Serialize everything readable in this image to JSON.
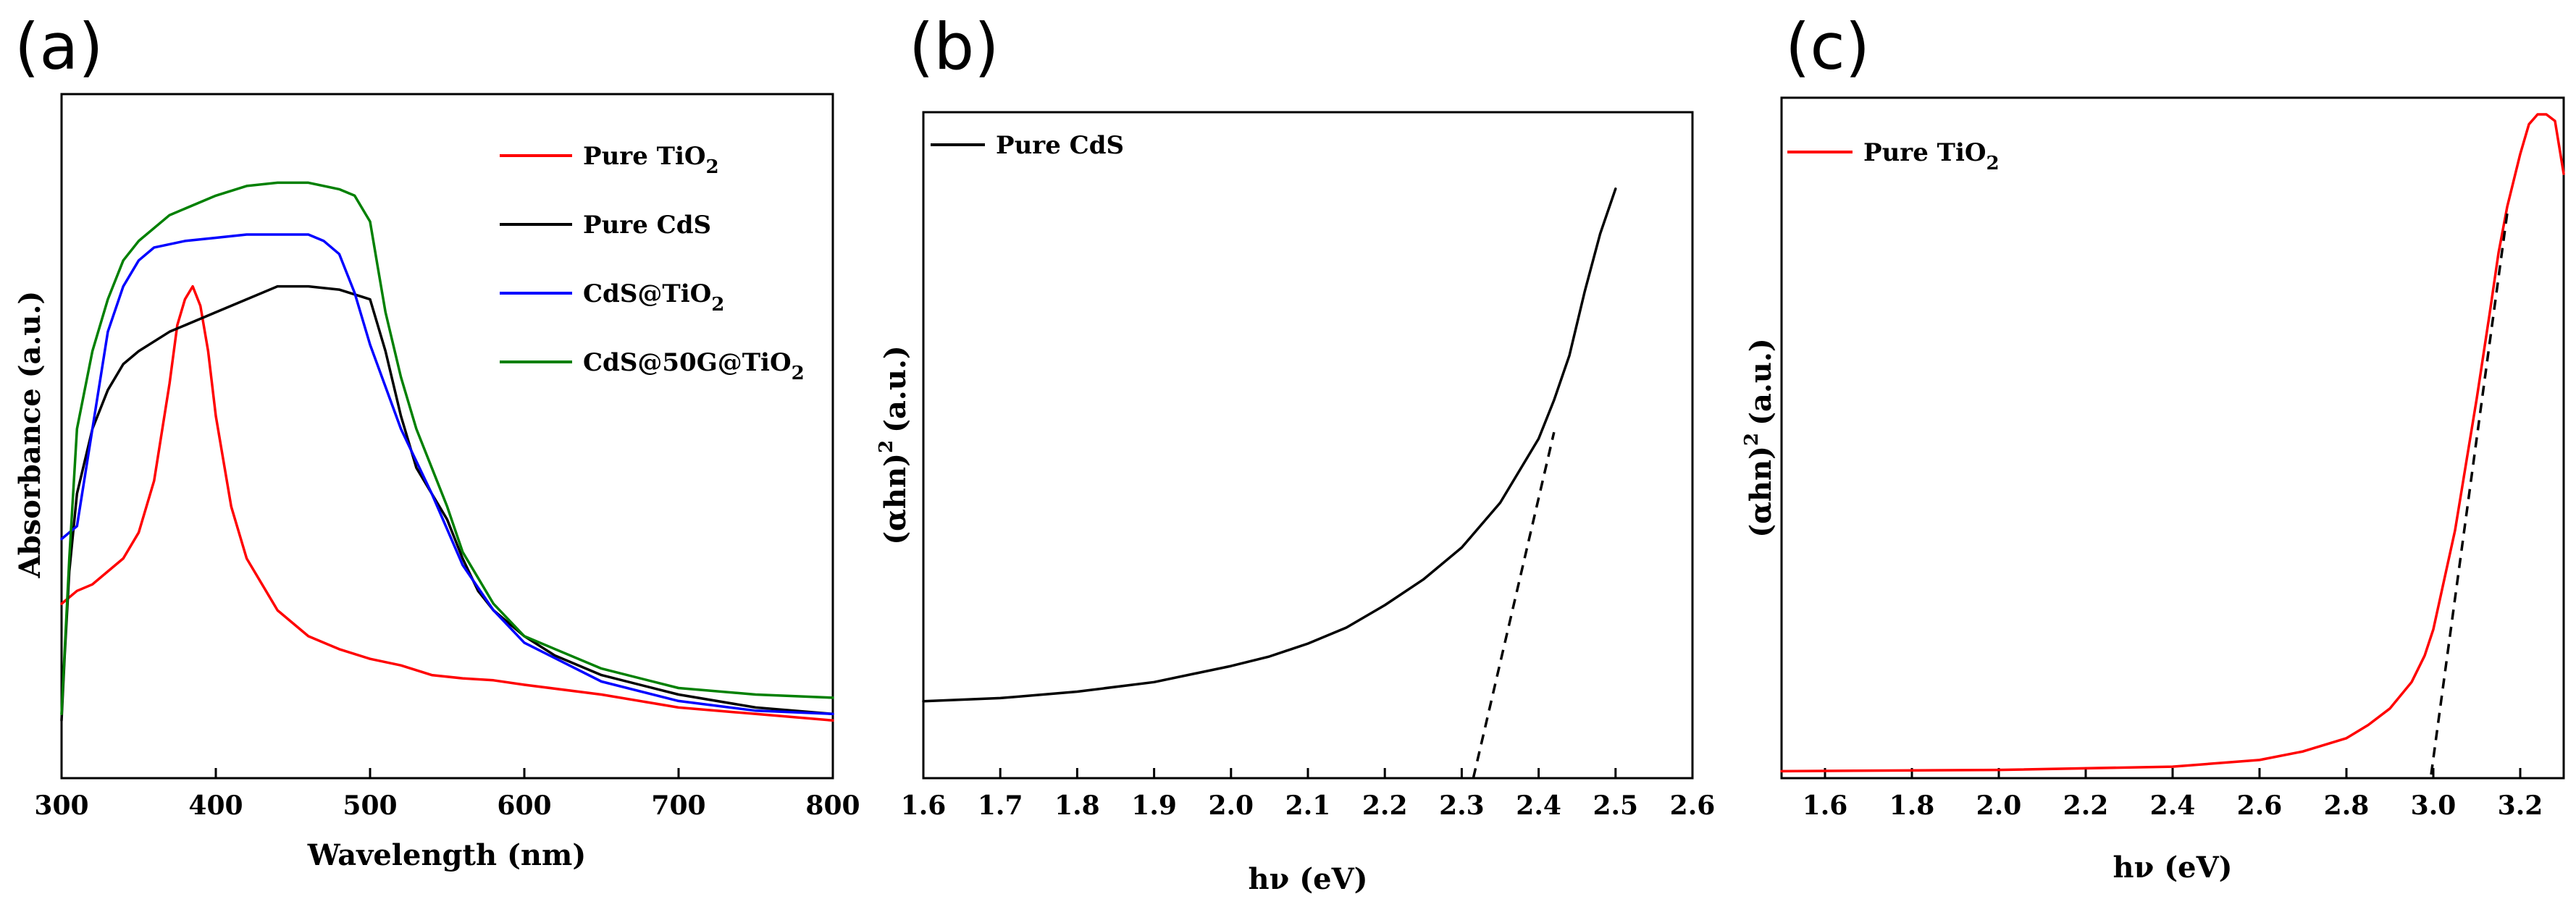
{
  "chart_data": [
    {
      "panel": "(a)",
      "type": "line",
      "xlabel": "Wavelength (nm)",
      "ylabel": "Absorbance (a.u.)",
      "xlim": [
        300,
        800
      ],
      "ylim": [
        0,
        1.0
      ],
      "xticks": [
        300,
        400,
        500,
        600,
        700,
        800
      ],
      "legend_position": "top-right",
      "series": [
        {
          "name": "Pure TiO",
          "sub": "2",
          "color": "#ff0000",
          "x": [
            300,
            310,
            320,
            330,
            340,
            350,
            360,
            370,
            375,
            380,
            385,
            390,
            395,
            400,
            410,
            420,
            440,
            460,
            480,
            500,
            520,
            540,
            560,
            580,
            600,
            650,
            700,
            750,
            800
          ],
          "y": [
            0.23,
            0.25,
            0.26,
            0.28,
            0.3,
            0.34,
            0.42,
            0.57,
            0.66,
            0.7,
            0.72,
            0.69,
            0.62,
            0.52,
            0.38,
            0.3,
            0.22,
            0.18,
            0.16,
            0.145,
            0.135,
            0.12,
            0.115,
            0.112,
            0.105,
            0.09,
            0.07,
            0.06,
            0.05
          ]
        },
        {
          "name": "Pure CdS",
          "color": "#000000",
          "x": [
            300,
            302,
            305,
            310,
            320,
            330,
            340,
            350,
            370,
            400,
            420,
            440,
            450,
            460,
            480,
            500,
            510,
            520,
            530,
            540,
            550,
            560,
            570,
            580,
            600,
            620,
            650,
            700,
            750,
            800
          ],
          "y": [
            0.05,
            0.15,
            0.28,
            0.4,
            0.5,
            0.56,
            0.6,
            0.62,
            0.65,
            0.68,
            0.7,
            0.72,
            0.72,
            0.72,
            0.715,
            0.7,
            0.62,
            0.52,
            0.44,
            0.4,
            0.36,
            0.3,
            0.25,
            0.22,
            0.18,
            0.15,
            0.12,
            0.09,
            0.07,
            0.06
          ]
        },
        {
          "name": "CdS@TiO",
          "sub": "2",
          "color": "#0000ff",
          "x": [
            300,
            310,
            320,
            330,
            340,
            350,
            360,
            380,
            400,
            420,
            440,
            460,
            470,
            480,
            490,
            500,
            520,
            540,
            560,
            580,
            600,
            650,
            700,
            750,
            800
          ],
          "y": [
            0.33,
            0.35,
            0.5,
            0.65,
            0.72,
            0.76,
            0.78,
            0.79,
            0.795,
            0.8,
            0.8,
            0.8,
            0.79,
            0.77,
            0.71,
            0.63,
            0.5,
            0.4,
            0.29,
            0.22,
            0.17,
            0.11,
            0.08,
            0.065,
            0.06
          ]
        },
        {
          "name": "CdS@50G@TiO",
          "sub": "2",
          "color": "#008000",
          "x": [
            300,
            305,
            310,
            320,
            330,
            340,
            350,
            370,
            400,
            420,
            440,
            460,
            480,
            490,
            500,
            505,
            510,
            520,
            530,
            540,
            550,
            560,
            580,
            600,
            650,
            700,
            750,
            800
          ],
          "y": [
            0.06,
            0.3,
            0.5,
            0.62,
            0.7,
            0.76,
            0.79,
            0.83,
            0.86,
            0.875,
            0.88,
            0.88,
            0.87,
            0.86,
            0.82,
            0.75,
            0.68,
            0.58,
            0.5,
            0.44,
            0.38,
            0.31,
            0.23,
            0.18,
            0.13,
            0.1,
            0.09,
            0.085
          ]
        }
      ]
    },
    {
      "panel": "(b)",
      "type": "line",
      "xlabel": "hν (eV)",
      "ylabel": "(αhn)",
      "ylabel_sup": "2",
      "ylabel_unit": "(a.u.)",
      "xlim": [
        1.6,
        2.6
      ],
      "ylim": [
        0,
        1.0
      ],
      "xticks": [
        "1.6",
        "1.7",
        "1.8",
        "1.9",
        "2.0",
        "2.1",
        "2.2",
        "2.3",
        "2.4",
        "2.5",
        "2.6"
      ],
      "legend_position": "top-left",
      "series": [
        {
          "name": "Pure CdS",
          "color": "#000000",
          "x": [
            1.6,
            1.7,
            1.8,
            1.9,
            2.0,
            2.05,
            2.1,
            2.15,
            2.2,
            2.25,
            2.3,
            2.35,
            2.38,
            2.4,
            2.42,
            2.44,
            2.46,
            2.48,
            2.5
          ],
          "y": [
            0.12,
            0.125,
            0.135,
            0.15,
            0.175,
            0.19,
            0.21,
            0.235,
            0.27,
            0.31,
            0.36,
            0.43,
            0.49,
            0.53,
            0.59,
            0.66,
            0.76,
            0.85,
            0.92
          ]
        }
      ],
      "tangent": {
        "x": [
          2.315,
          2.42
        ],
        "y": [
          0.0,
          0.54
        ]
      }
    },
    {
      "panel": "(c)",
      "type": "line",
      "xlabel": "hν (eV)",
      "ylabel": "(αhn)",
      "ylabel_sup": "2",
      "ylabel_unit": "(a.u.)",
      "xlim": [
        1.5,
        3.3
      ],
      "ylim": [
        0,
        1.0
      ],
      "xticks": [
        "1.6",
        "1.8",
        "2.0",
        "2.2",
        "2.4",
        "2.6",
        "2.8",
        "3.0",
        "3.2"
      ],
      "legend_position": "top-left",
      "series": [
        {
          "name": "Pure TiO",
          "sub": "2",
          "color": "#ff0000",
          "x": [
            1.5,
            2.0,
            2.4,
            2.6,
            2.7,
            2.8,
            2.85,
            2.9,
            2.95,
            2.98,
            3.0,
            3.02,
            3.05,
            3.08,
            3.1,
            3.13,
            3.15,
            3.17,
            3.2,
            3.22,
            3.24,
            3.26,
            3.28,
            3.29,
            3.3
          ],
          "y": [
            0.005,
            0.007,
            0.012,
            0.022,
            0.035,
            0.055,
            0.075,
            0.1,
            0.14,
            0.18,
            0.22,
            0.28,
            0.37,
            0.49,
            0.57,
            0.7,
            0.79,
            0.86,
            0.94,
            0.985,
            1.0,
            1.0,
            0.99,
            0.95,
            0.91
          ]
        }
      ],
      "tangent": {
        "x": [
          2.995,
          3.17
        ],
        "y": [
          0.0,
          0.85
        ]
      }
    }
  ]
}
